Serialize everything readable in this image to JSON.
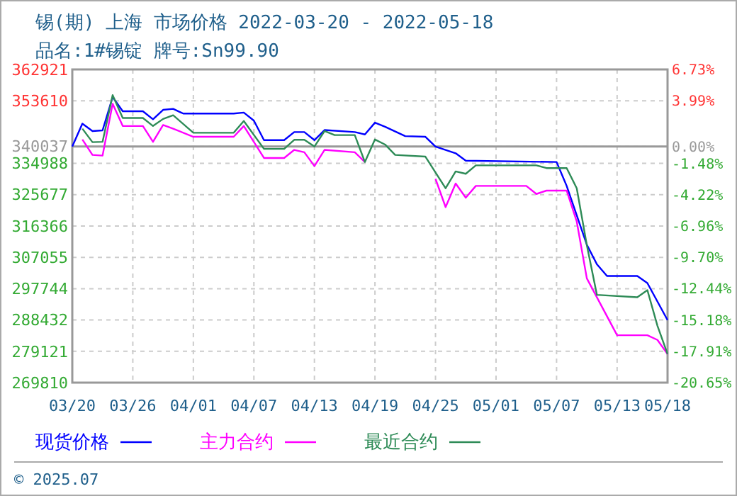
{
  "chart_data": {
    "type": "line",
    "title": "锡(期) 上海 市场价格 2022-03-20 - 2022-05-18",
    "subtitle": "品名:1#锡锭 牌号:Sn99.90",
    "annotations": [
      "© 2025.07"
    ],
    "xlim": [
      "2022-03-20",
      "2022-05-18"
    ],
    "xticks": [
      {
        "value": "2022-03-20",
        "label": "03/20"
      },
      {
        "value": "2022-03-26",
        "label": "03/26"
      },
      {
        "value": "2022-04-01",
        "label": "04/01"
      },
      {
        "value": "2022-04-07",
        "label": "04/07"
      },
      {
        "value": "2022-04-13",
        "label": "04/13"
      },
      {
        "value": "2022-04-19",
        "label": "04/19"
      },
      {
        "value": "2022-04-25",
        "label": "04/25"
      },
      {
        "value": "2022-05-01",
        "label": "05/01"
      },
      {
        "value": "2022-05-07",
        "label": "05/07"
      },
      {
        "value": "2022-05-13",
        "label": "05/13"
      },
      {
        "value": "2022-05-18",
        "label": "05/18"
      }
    ],
    "ylim": [
      269810,
      362921
    ],
    "yticks": [
      362921,
      353610,
      340037,
      334988,
      325677,
      316366,
      307055,
      297744,
      288432,
      279121,
      269810
    ],
    "y2lim": [
      -20.65,
      6.73
    ],
    "y2ticks": [
      {
        "value": 6.73,
        "label": "6.73%"
      },
      {
        "value": 3.99,
        "label": "3.99%"
      },
      {
        "value": 0,
        "label": "0.00%"
      },
      {
        "value": -1.48,
        "label": "-1.48%"
      },
      {
        "value": -4.22,
        "label": "-4.22%"
      },
      {
        "value": -6.96,
        "label": "-6.96%"
      },
      {
        "value": -9.7,
        "label": "-9.70%"
      },
      {
        "value": -12.44,
        "label": "-12.44%"
      },
      {
        "value": -15.18,
        "label": "-15.18%"
      },
      {
        "value": -17.91,
        "label": "-17.91%"
      },
      {
        "value": -20.65,
        "label": "-20.65%"
      }
    ],
    "ref_lines": [
      {
        "axis": "y",
        "value": 340037,
        "color": "#999999"
      }
    ],
    "grid": true,
    "legend": "bottom",
    "marker": "none",
    "line_style": "solid",
    "series": [
      {
        "name": "现货价格",
        "color": "#0000ff",
        "x": [
          "2022-03-20",
          "2022-03-21",
          "2022-03-22",
          "2022-03-23",
          "2022-03-24",
          "2022-03-25",
          "2022-03-27",
          "2022-03-28",
          "2022-03-29",
          "2022-03-30",
          "2022-03-31",
          "2022-04-05",
          "2022-04-06",
          "2022-04-07",
          "2022-04-08",
          "2022-04-10",
          "2022-04-11",
          "2022-04-12",
          "2022-04-13",
          "2022-04-14",
          "2022-04-17",
          "2022-04-18",
          "2022-04-19",
          "2022-04-20",
          "2022-04-22",
          "2022-04-24",
          "2022-04-25",
          "2022-04-27",
          "2022-04-28",
          "2022-05-07",
          "2022-05-08",
          "2022-05-10",
          "2022-05-11",
          "2022-05-12",
          "2022-05-15",
          "2022-05-16",
          "2022-05-18"
        ],
        "values": [
          340000,
          346800,
          344600,
          344800,
          354700,
          350500,
          350500,
          348100,
          350900,
          351200,
          349800,
          349800,
          350100,
          347700,
          341900,
          341900,
          344300,
          344300,
          341900,
          344900,
          344300,
          343600,
          347100,
          345900,
          343100,
          342900,
          340000,
          338000,
          335800,
          335400,
          328300,
          310800,
          305000,
          301500,
          301500,
          299400,
          288400
        ]
      },
      {
        "name": "主力合约",
        "color": "#ff00ff",
        "x": [
          "2022-03-21",
          "2022-03-22",
          "2022-03-23",
          "2022-03-24",
          "2022-03-25",
          "2022-03-27",
          "2022-03-28",
          "2022-03-29",
          "2022-03-30",
          "2022-04-01",
          "2022-04-05",
          "2022-04-06",
          "2022-04-08",
          "2022-04-10",
          "2022-04-11",
          "2022-04-12",
          "2022-04-13",
          "2022-04-14",
          "2022-04-17",
          "2022-04-18",
          "2022-04-19",
          "2022-04-20",
          "2022-04-21",
          "2022-04-24",
          "2022-04-25",
          "2022-04-26",
          "2022-04-27",
          "2022-04-28",
          "2022-04-29",
          "2022-05-04",
          "2022-05-05",
          "2022-05-06",
          "2022-05-08",
          "2022-05-09",
          "2022-05-10",
          "2022-05-13",
          "2022-05-16",
          "2022-05-17",
          "2022-05-18"
        ],
        "values": [
          342100,
          337500,
          337300,
          352700,
          346100,
          346100,
          341400,
          346400,
          345300,
          342900,
          342900,
          346100,
          336600,
          336600,
          339000,
          338300,
          334200,
          339000,
          338300,
          335400,
          null,
          null,
          null,
          null,
          330400,
          322000,
          329000,
          324800,
          328300,
          328300,
          325900,
          326900,
          326900,
          317700,
          300800,
          283900,
          283900,
          282500,
          278300
        ]
      },
      {
        "name": "最近合约",
        "color": "#2e8b57",
        "x": [
          "2022-03-21",
          "2022-03-22",
          "2022-03-23",
          "2022-03-24",
          "2022-03-25",
          "2022-03-27",
          "2022-03-28",
          "2022-03-29",
          "2022-03-30",
          "2022-04-01",
          "2022-04-05",
          "2022-04-06",
          "2022-04-08",
          "2022-04-10",
          "2022-04-11",
          "2022-04-12",
          "2022-04-13",
          "2022-04-14",
          "2022-04-15",
          "2022-04-17",
          "2022-04-18",
          "2022-04-19",
          "2022-04-20",
          "2022-04-21",
          "2022-04-24",
          "2022-04-26",
          "2022-04-27",
          "2022-04-28",
          "2022-04-29",
          "2022-05-05",
          "2022-05-06",
          "2022-05-08",
          "2022-05-09",
          "2022-05-10",
          "2022-05-11",
          "2022-05-15",
          "2022-05-16",
          "2022-05-17",
          "2022-05-18"
        ],
        "values": [
          345300,
          341300,
          341400,
          355300,
          348500,
          348500,
          346100,
          348200,
          349300,
          344100,
          344100,
          347600,
          339300,
          339300,
          342000,
          342000,
          340000,
          344600,
          343400,
          343400,
          335400,
          342100,
          340600,
          337500,
          337000,
          327600,
          332600,
          331900,
          334400,
          334400,
          333600,
          333600,
          327600,
          310700,
          295900,
          295200,
          297300,
          286700,
          278300
        ]
      }
    ]
  }
}
